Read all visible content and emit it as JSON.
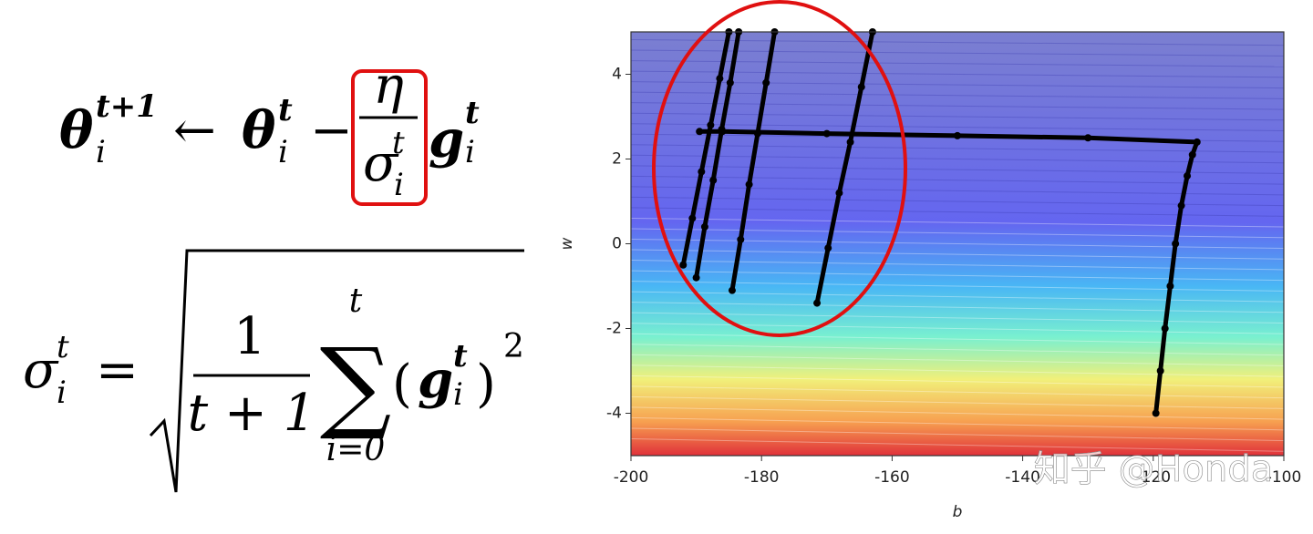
{
  "formula_update": {
    "theta": "θ",
    "theta_sup": "t+1",
    "theta_sub": "i",
    "arrow": "←",
    "theta2": "θ",
    "theta2_sup": "t",
    "theta2_sub": "i",
    "minus": "−",
    "eta": "η",
    "sigma": "σ",
    "sigma_sup": "t",
    "sigma_sub": "i",
    "g": "g",
    "g_sup": "t",
    "g_sub": "i"
  },
  "formula_sigma": {
    "sigma": "σ",
    "sigma_sup": "t",
    "sigma_sub": "i",
    "equals": "=",
    "numerator": "1",
    "denominator": "t + 1",
    "sum": "∑",
    "sum_top": "t",
    "sum_bottom": "i=0",
    "open": "(",
    "g": "g",
    "g_sup": "t",
    "g_sub": "i",
    "close": ")",
    "power": "2"
  },
  "watermark": "知乎 @Honda",
  "chart_data": {
    "type": "line",
    "xlabel": "b",
    "ylabel": "w",
    "xlim": [
      -200,
      -100
    ],
    "ylim": [
      -5,
      5
    ],
    "xticks": [
      -200,
      -180,
      -160,
      -140,
      -120,
      -100
    ],
    "yticks": [
      -4,
      -2,
      0,
      2,
      4
    ],
    "series": [
      {
        "color": "#000000",
        "x": [
          -119.6,
          -118.9,
          -118.2,
          -117.4,
          -116.6,
          -115.7,
          -114.8,
          -114.0,
          -113.3,
          -130,
          -150,
          -170,
          -186,
          -189.5
        ],
        "values": [
          -4,
          -3,
          -2,
          -1,
          0,
          0.9,
          1.6,
          2.1,
          2.4,
          2.5,
          2.55,
          2.6,
          2.65,
          2.65
        ]
      },
      {
        "color": "#000000",
        "x": [
          -192,
          -190.6,
          -189.2,
          -187.8,
          -186.4,
          -185
        ],
        "values": [
          -0.5,
          0.6,
          1.7,
          2.8,
          3.9,
          5
        ]
      },
      {
        "color": "#000000",
        "x": [
          -190,
          -188.7,
          -187.4,
          -186.1,
          -184.8,
          -183.5
        ],
        "values": [
          -0.8,
          0.4,
          1.5,
          2.7,
          3.8,
          5
        ]
      },
      {
        "color": "#000000",
        "x": [
          -184.5,
          -183.2,
          -181.9,
          -180.6,
          -179.3,
          -178
        ],
        "values": [
          -1.1,
          0.1,
          1.4,
          2.6,
          3.8,
          5
        ]
      },
      {
        "color": "#000000",
        "x": [
          -171.5,
          -169.8,
          -168.1,
          -166.4,
          -164.7,
          -163
        ],
        "values": [
          -1.4,
          -0.1,
          1.2,
          2.4,
          3.7,
          5
        ]
      }
    ]
  }
}
